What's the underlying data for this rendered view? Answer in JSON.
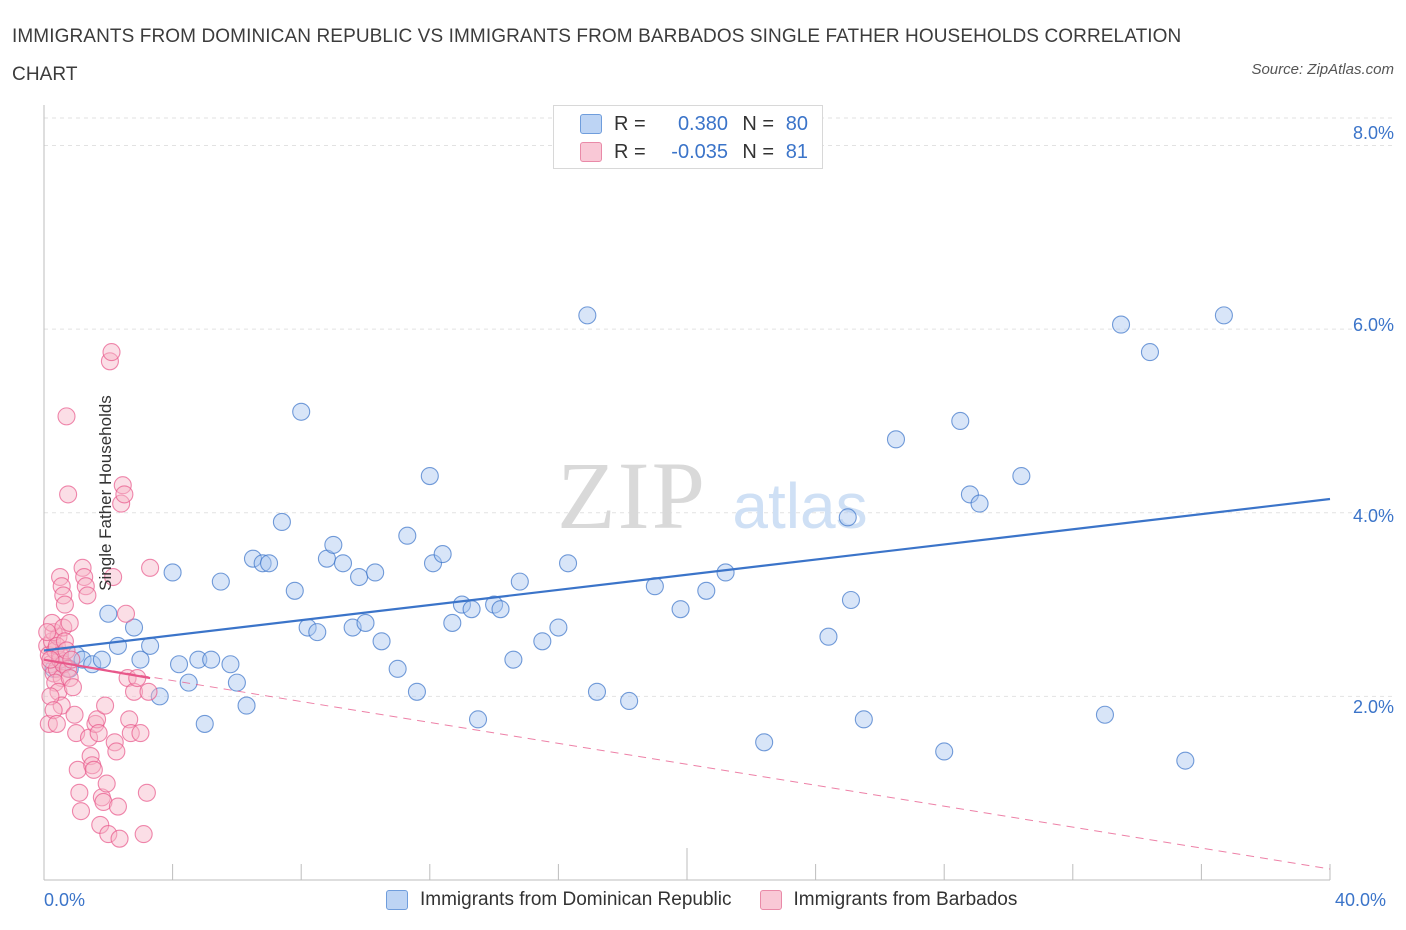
{
  "title": "IMMIGRANTS FROM DOMINICAN REPUBLIC VS IMMIGRANTS FROM BARBADOS SINGLE FATHER HOUSEHOLDS CORRELATION CHART",
  "source": "Source: ZipAtlas.com",
  "watermark": {
    "zip": "ZIP",
    "atlas": "atlas"
  },
  "legend": {
    "r_label": "R =",
    "n_label": "N =",
    "series": [
      {
        "r": "0.380",
        "n": "80",
        "color": "#a9c6f0"
      },
      {
        "r": "-0.035",
        "n": "81",
        "color": "#f6b6c8"
      }
    ]
  },
  "chart_data": {
    "type": "scatter",
    "title": "IMMIGRANTS FROM DOMINICAN REPUBLIC VS IMMIGRANTS FROM BARBADOS SINGLE FATHER HOUSEHOLDS CORRELATION CHART",
    "xlabel": "",
    "ylabel": "Single Father Households",
    "xlim": [
      0,
      40
    ],
    "ylim": [
      0,
      8
    ],
    "x_tick_labels": [
      "0.0%",
      "40.0%"
    ],
    "y_tick_labels": [
      "2.0%",
      "4.0%",
      "6.0%",
      "8.0%"
    ],
    "y_tick_values": [
      2,
      4,
      6,
      8
    ],
    "grid": true,
    "series": [
      {
        "name": "Immigrants from Dominican Republic",
        "color": "#3b74c9",
        "fill": "#a9c6f0",
        "trend": {
          "x": [
            0,
            40
          ],
          "y": [
            2.5,
            4.15
          ],
          "style": "solid"
        },
        "points": [
          [
            0.3,
            2.3
          ],
          [
            0.5,
            2.4
          ],
          [
            0.6,
            2.35
          ],
          [
            0.8,
            2.3
          ],
          [
            1.0,
            2.45
          ],
          [
            1.2,
            2.4
          ],
          [
            1.5,
            2.35
          ],
          [
            1.8,
            2.4
          ],
          [
            2.0,
            2.9
          ],
          [
            2.3,
            2.55
          ],
          [
            2.8,
            2.75
          ],
          [
            3.0,
            2.4
          ],
          [
            3.3,
            2.55
          ],
          [
            3.6,
            2.0
          ],
          [
            4.0,
            3.35
          ],
          [
            4.2,
            2.35
          ],
          [
            4.5,
            2.15
          ],
          [
            4.8,
            2.4
          ],
          [
            5.0,
            1.7
          ],
          [
            5.2,
            2.4
          ],
          [
            5.5,
            3.25
          ],
          [
            5.8,
            2.35
          ],
          [
            6.0,
            2.15
          ],
          [
            6.3,
            1.9
          ],
          [
            6.5,
            3.5
          ],
          [
            6.8,
            3.45
          ],
          [
            7.0,
            3.45
          ],
          [
            7.4,
            3.9
          ],
          [
            7.8,
            3.15
          ],
          [
            8.0,
            5.1
          ],
          [
            8.2,
            2.75
          ],
          [
            8.5,
            2.7
          ],
          [
            8.8,
            3.5
          ],
          [
            9.0,
            3.65
          ],
          [
            9.3,
            3.45
          ],
          [
            9.6,
            2.75
          ],
          [
            9.8,
            3.3
          ],
          [
            10.0,
            2.8
          ],
          [
            10.3,
            3.35
          ],
          [
            10.5,
            2.6
          ],
          [
            11.0,
            2.3
          ],
          [
            11.3,
            3.75
          ],
          [
            11.6,
            2.05
          ],
          [
            12.0,
            4.4
          ],
          [
            12.1,
            3.45
          ],
          [
            12.4,
            3.55
          ],
          [
            12.7,
            2.8
          ],
          [
            13.0,
            3.0
          ],
          [
            13.3,
            2.95
          ],
          [
            13.5,
            1.75
          ],
          [
            14.0,
            3.0
          ],
          [
            14.2,
            2.95
          ],
          [
            14.6,
            2.4
          ],
          [
            14.8,
            3.25
          ],
          [
            15.5,
            2.6
          ],
          [
            16.0,
            2.75
          ],
          [
            16.3,
            3.45
          ],
          [
            16.9,
            6.15
          ],
          [
            17.2,
            2.05
          ],
          [
            18.2,
            1.95
          ],
          [
            19.0,
            3.2
          ],
          [
            19.8,
            2.95
          ],
          [
            20.6,
            3.15
          ],
          [
            21.2,
            3.35
          ],
          [
            22.4,
            1.5
          ],
          [
            24.4,
            2.65
          ],
          [
            25.0,
            3.95
          ],
          [
            25.1,
            3.05
          ],
          [
            25.5,
            1.75
          ],
          [
            26.5,
            4.8
          ],
          [
            28.0,
            1.4
          ],
          [
            28.5,
            5.0
          ],
          [
            28.8,
            4.2
          ],
          [
            29.1,
            4.1
          ],
          [
            30.4,
            4.4
          ],
          [
            33.0,
            1.8
          ],
          [
            33.5,
            6.05
          ],
          [
            34.4,
            5.75
          ],
          [
            35.5,
            1.3
          ],
          [
            36.7,
            6.15
          ]
        ]
      },
      {
        "name": "Immigrants from Barbados",
        "color": "#e8578a",
        "fill": "#f6b6c8",
        "trend": {
          "x": [
            0,
            3.3
          ],
          "y": [
            2.4,
            2.2
          ],
          "style": "solid"
        },
        "trend_extended": {
          "x": [
            0,
            40
          ],
          "y": [
            2.4,
            0.12
          ],
          "style": "dashed"
        },
        "points": [
          [
            0.1,
            2.55
          ],
          [
            0.15,
            2.45
          ],
          [
            0.2,
            2.35
          ],
          [
            0.25,
            2.6
          ],
          [
            0.3,
            2.25
          ],
          [
            0.35,
            2.5
          ],
          [
            0.4,
            2.3
          ],
          [
            0.45,
            2.65
          ],
          [
            0.5,
            2.4
          ],
          [
            0.55,
            2.2
          ],
          [
            0.3,
            2.7
          ],
          [
            0.4,
            2.55
          ],
          [
            0.5,
            2.45
          ],
          [
            0.6,
            2.35
          ],
          [
            0.2,
            2.4
          ],
          [
            0.35,
            2.15
          ],
          [
            0.45,
            2.05
          ],
          [
            0.55,
            1.9
          ],
          [
            0.15,
            1.7
          ],
          [
            0.25,
            2.8
          ],
          [
            0.6,
            2.75
          ],
          [
            0.65,
            2.6
          ],
          [
            0.7,
            2.5
          ],
          [
            0.75,
            2.3
          ],
          [
            0.8,
            2.2
          ],
          [
            0.5,
            3.3
          ],
          [
            0.55,
            3.2
          ],
          [
            0.6,
            3.1
          ],
          [
            0.65,
            3.0
          ],
          [
            0.7,
            5.05
          ],
          [
            0.75,
            4.2
          ],
          [
            0.8,
            2.8
          ],
          [
            0.85,
            2.4
          ],
          [
            0.9,
            2.1
          ],
          [
            0.95,
            1.8
          ],
          [
            1.0,
            1.6
          ],
          [
            1.05,
            1.2
          ],
          [
            1.1,
            0.95
          ],
          [
            1.15,
            0.75
          ],
          [
            1.2,
            3.4
          ],
          [
            1.25,
            3.3
          ],
          [
            1.3,
            3.2
          ],
          [
            1.35,
            3.1
          ],
          [
            1.4,
            1.55
          ],
          [
            1.45,
            1.35
          ],
          [
            1.5,
            1.25
          ],
          [
            1.55,
            1.2
          ],
          [
            1.6,
            1.7
          ],
          [
            1.65,
            1.75
          ],
          [
            1.7,
            1.6
          ],
          [
            1.75,
            0.6
          ],
          [
            1.8,
            0.9
          ],
          [
            1.85,
            0.85
          ],
          [
            1.9,
            1.9
          ],
          [
            1.95,
            1.05
          ],
          [
            2.0,
            0.5
          ],
          [
            2.05,
            5.65
          ],
          [
            2.1,
            5.75
          ],
          [
            2.15,
            3.3
          ],
          [
            2.2,
            1.5
          ],
          [
            2.25,
            1.4
          ],
          [
            2.3,
            0.8
          ],
          [
            2.35,
            0.45
          ],
          [
            2.4,
            4.1
          ],
          [
            2.45,
            4.3
          ],
          [
            2.5,
            4.2
          ],
          [
            2.55,
            2.9
          ],
          [
            2.6,
            2.2
          ],
          [
            2.65,
            1.75
          ],
          [
            2.7,
            1.6
          ],
          [
            2.8,
            2.05
          ],
          [
            2.9,
            2.2
          ],
          [
            3.0,
            1.6
          ],
          [
            3.1,
            0.5
          ],
          [
            3.2,
            0.95
          ],
          [
            3.3,
            3.4
          ],
          [
            0.1,
            2.7
          ],
          [
            0.2,
            2.0
          ],
          [
            0.3,
            1.85
          ],
          [
            0.4,
            1.7
          ],
          [
            3.25,
            2.05
          ]
        ]
      }
    ]
  }
}
